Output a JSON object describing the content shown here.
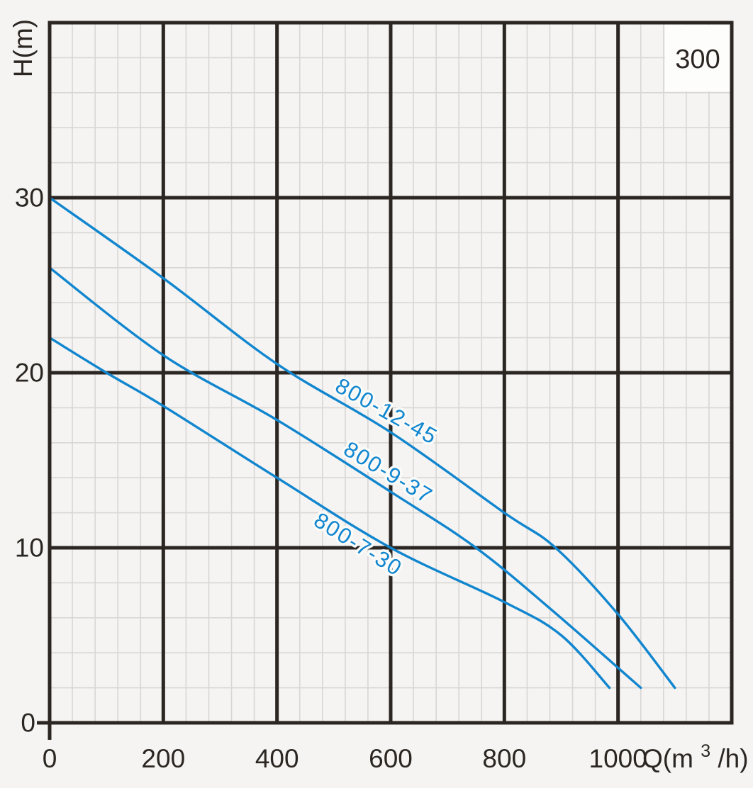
{
  "chart_data": {
    "type": "line",
    "title": "",
    "corner_label": "300",
    "x_axis": {
      "title_prefix": "Q(m",
      "title_sup": "3",
      "title_suffix": "/h)",
      "lim": [
        0,
        1200
      ],
      "major_step": 200,
      "minor_step": 40,
      "ticks": [
        0,
        200,
        400,
        600,
        800,
        1000
      ]
    },
    "y_axis": {
      "title": "H(m)",
      "lim": [
        0,
        40
      ],
      "major_step": 10,
      "minor_step": 2,
      "ticks": [
        0,
        10,
        20,
        30
      ]
    },
    "grid": "major+minor",
    "series": [
      {
        "name": "800-12-45",
        "points": [
          [
            0,
            30
          ],
          [
            200,
            25.4
          ],
          [
            400,
            20.5
          ],
          [
            600,
            16.6
          ],
          [
            800,
            12
          ],
          [
            890,
            10
          ],
          [
            1000,
            6.2
          ],
          [
            1100,
            2
          ]
        ],
        "label": {
          "q": 593,
          "h": 17.8,
          "angle": 29
        }
      },
      {
        "name": "800-9-37",
        "points": [
          [
            0,
            26
          ],
          [
            200,
            21
          ],
          [
            400,
            17.3
          ],
          [
            600,
            13.2
          ],
          [
            750,
            10
          ],
          [
            885,
            6.4
          ],
          [
            1040,
            2
          ]
        ],
        "label": {
          "q": 596,
          "h": 14.3,
          "angle": 31
        }
      },
      {
        "name": "800-7-30",
        "points": [
          [
            0,
            22
          ],
          [
            100,
            20
          ],
          [
            200,
            18.1
          ],
          [
            400,
            14
          ],
          [
            600,
            10
          ],
          [
            800,
            6.9
          ],
          [
            900,
            5
          ],
          [
            985,
            2
          ]
        ],
        "label": {
          "q": 543,
          "h": 10.2,
          "angle": 32
        }
      }
    ],
    "colors": {
      "curve": "#1186cf",
      "grid_major": "#2b2622",
      "grid_minor": "#d8d7d4",
      "background": "#f5f4f2",
      "text": "#2b2622",
      "corner_box": "#fdfdfc"
    }
  }
}
